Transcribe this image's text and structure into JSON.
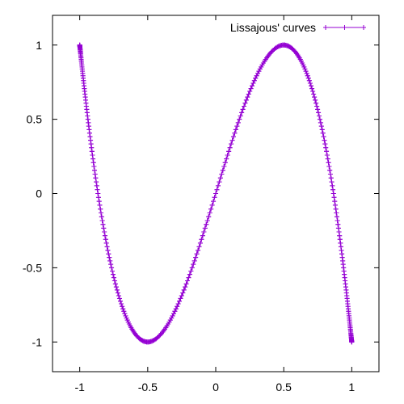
{
  "chart_data": {
    "type": "line",
    "title": "",
    "xlabel": "",
    "ylabel": "",
    "xlim": [
      -1.2,
      1.2
    ],
    "ylim": [
      -1.2,
      1.2
    ],
    "x_ticks": [
      -1,
      -0.5,
      0,
      0.5,
      1
    ],
    "y_ticks": [
      -1,
      -0.5,
      0,
      0.5,
      1
    ],
    "x_tick_labels": [
      "-1",
      "-0.5",
      "0",
      "0.5",
      "1"
    ],
    "y_tick_labels": [
      "-1",
      "-0.5",
      "0",
      "0.5",
      "1"
    ],
    "grid": false,
    "legend_position": "top-right",
    "series": [
      {
        "name": "Lissajous' curves",
        "color": "#9400d3",
        "marker": "plus",
        "parametric": {
          "x": "sin(t)",
          "y": "sin(3t)",
          "t_range": [
            0,
            6.2832
          ],
          "samples": 720
        }
      }
    ]
  }
}
